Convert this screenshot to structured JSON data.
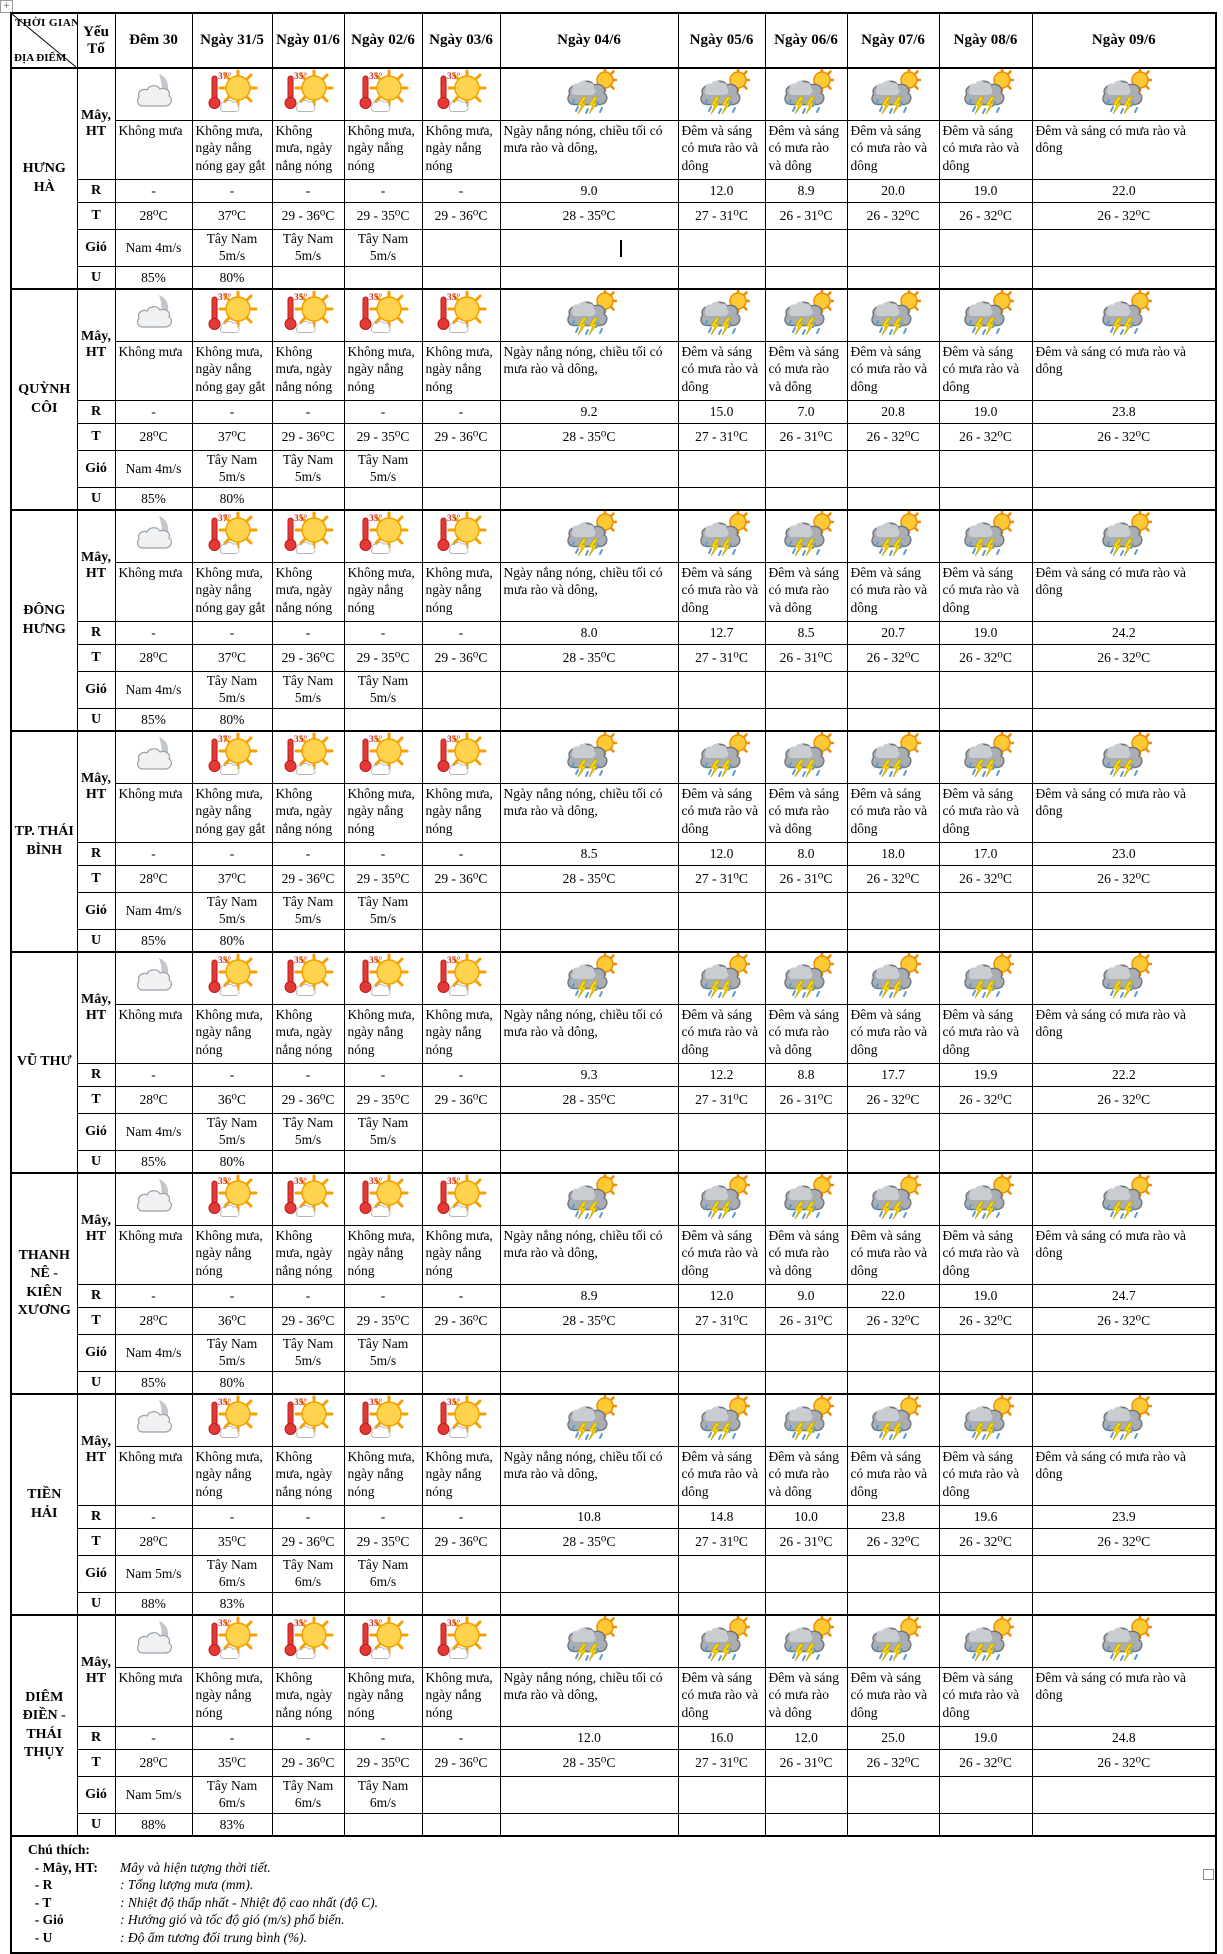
{
  "header": {
    "corner_top": "THỜI GIAN",
    "corner_bottom": "ĐỊA ĐIỂM",
    "factor_label": "Yếu Tố",
    "dates": [
      "Đêm 30",
      "Ngày 31/5",
      "Ngày 01/6",
      "Ngày 02/6",
      "Ngày 03/6",
      "Ngày 04/6",
      "Ngày 05/6",
      "Ngày 06/6",
      "Ngày 07/6",
      "Ngày 08/6",
      "Ngày 09/6"
    ]
  },
  "row_labels": {
    "cloud": "Mây, HT",
    "rain": "R",
    "temp": "T",
    "wind": "Gió",
    "humidity": "U"
  },
  "icon_badges": {
    "hot37": "37°",
    "hot35": "35°"
  },
  "cursor": {
    "location_index": 0,
    "row": "wind",
    "col_index": 5
  },
  "colors": {
    "sun": "#ffd34d",
    "ray": "#f5a000",
    "cloud_grey": "#a9aeb4",
    "lightning": "#ffdf00",
    "rain_blue": "#5b9bd5",
    "thermo_red": "#e53935"
  },
  "locations": [
    {
      "name": "HƯNG HÀ",
      "icons": [
        "night",
        "hot37",
        "hot35",
        "hot35",
        "hot35",
        "storm",
        "storm",
        "storm",
        "storm",
        "storm",
        "storm"
      ],
      "ht": [
        "Không mưa",
        "Không mưa, ngày nắng nóng gay gắt",
        "Không mưa, ngày nắng nóng",
        "Không mưa, ngày nắng nóng",
        "Không mưa, ngày nắng nóng",
        "Ngày nắng nóng, chiều tối có mưa rào và dông,",
        "Đêm và sáng có mưa rào và dông",
        "Đêm và sáng có mưa rào và dông",
        "Đêm và sáng có mưa rào và dông",
        "Đêm và sáng có mưa rào và dông",
        "Đêm và sáng có mưa rào và dông"
      ],
      "r": [
        "-",
        "-",
        "-",
        "-",
        "-",
        "9.0",
        "12.0",
        "8.9",
        "20.0",
        "19.0",
        "22.0"
      ],
      "t": [
        "28⁰C",
        "37⁰C",
        "29 - 36⁰C",
        "29 - 35⁰C",
        "29 - 36⁰C",
        "28 - 35⁰C",
        "27 - 31⁰C",
        "26 - 31⁰C",
        "26 - 32⁰C",
        "26 - 32⁰C",
        "26 - 32⁰C"
      ],
      "wind": [
        "Nam 4m/s",
        "Tây Nam 5m/s",
        "Tây Nam 5m/s",
        "Tây Nam 5m/s",
        "",
        "",
        "",
        "",
        "",
        "",
        ""
      ],
      "u": [
        "85%",
        "80%",
        "",
        "",
        "",
        "",
        "",
        "",
        "",
        "",
        ""
      ]
    },
    {
      "name": "QUỲNH CÔI",
      "icons": [
        "night",
        "hot37",
        "hot35",
        "hot35",
        "hot35",
        "storm",
        "storm",
        "storm",
        "storm",
        "storm",
        "storm"
      ],
      "ht": [
        "Không mưa",
        "Không mưa, ngày nắng nóng gay gắt",
        "Không mưa, ngày nắng nóng",
        "Không mưa, ngày nắng nóng",
        "Không mưa, ngày nắng nóng",
        "Ngày nắng nóng, chiều tối có mưa rào và dông,",
        "Đêm và sáng có mưa rào và dông",
        "Đêm và sáng có mưa rào và dông",
        "Đêm và sáng có mưa rào và dông",
        "Đêm và sáng có mưa rào và dông",
        "Đêm và sáng có mưa rào và dông"
      ],
      "r": [
        "-",
        "-",
        "-",
        "-",
        "-",
        "9.2",
        "15.0",
        "7.0",
        "20.8",
        "19.0",
        "23.8"
      ],
      "t": [
        "28⁰C",
        "37⁰C",
        "29 - 36⁰C",
        "29 - 35⁰C",
        "29 - 36⁰C",
        "28 - 35⁰C",
        "27 - 31⁰C",
        "26 - 31⁰C",
        "26 - 32⁰C",
        "26 - 32⁰C",
        "26 - 32⁰C"
      ],
      "wind": [
        "Nam 4m/s",
        "Tây Nam 5m/s",
        "Tây Nam 5m/s",
        "Tây Nam 5m/s",
        "",
        "",
        "",
        "",
        "",
        "",
        ""
      ],
      "u": [
        "85%",
        "80%",
        "",
        "",
        "",
        "",
        "",
        "",
        "",
        "",
        ""
      ]
    },
    {
      "name": "ĐÔNG HƯNG",
      "icons": [
        "night",
        "hot37",
        "hot35",
        "hot35",
        "hot35",
        "storm",
        "storm",
        "storm",
        "storm",
        "storm",
        "storm"
      ],
      "ht": [
        "Không mưa",
        "Không mưa, ngày nắng nóng gay gắt",
        "Không mưa, ngày nắng nóng",
        "Không mưa, ngày nắng nóng",
        "Không mưa, ngày nắng nóng",
        "Ngày nắng nóng, chiều tối có mưa rào và dông,",
        "Đêm và sáng có mưa rào và dông",
        "Đêm và sáng có mưa rào và dông",
        "Đêm và sáng có mưa rào và dông",
        "Đêm và sáng có mưa rào và dông",
        "Đêm và sáng có mưa rào và dông"
      ],
      "r": [
        "-",
        "-",
        "-",
        "-",
        "-",
        "8.0",
        "12.7",
        "8.5",
        "20.7",
        "19.0",
        "24.2"
      ],
      "t": [
        "28⁰C",
        "37⁰C",
        "29 - 36⁰C",
        "29 - 35⁰C",
        "29 - 36⁰C",
        "28 - 35⁰C",
        "27 - 31⁰C",
        "26 - 31⁰C",
        "26 - 32⁰C",
        "26 - 32⁰C",
        "26 - 32⁰C"
      ],
      "wind": [
        "Nam 4m/s",
        "Tây Nam 5m/s",
        "Tây Nam 5m/s",
        "Tây Nam 5m/s",
        "",
        "",
        "",
        "",
        "",
        "",
        ""
      ],
      "u": [
        "85%",
        "80%",
        "",
        "",
        "",
        "",
        "",
        "",
        "",
        "",
        ""
      ]
    },
    {
      "name": "TP. THÁI BÌNH",
      "icons": [
        "night",
        "hot37",
        "hot35",
        "hot35",
        "hot35",
        "storm",
        "storm",
        "storm",
        "storm",
        "storm",
        "storm"
      ],
      "ht": [
        "Không mưa",
        "Không mưa, ngày nắng nóng gay gắt",
        "Không mưa, ngày nắng nóng",
        "Không mưa, ngày nắng nóng",
        "Không mưa, ngày nắng nóng",
        "Ngày nắng nóng, chiều tối có mưa rào và dông,",
        "Đêm và sáng có mưa rào và dông",
        "Đêm và sáng có mưa rào và dông",
        "Đêm và sáng có mưa rào và dông",
        "Đêm và sáng có mưa rào và dông",
        "Đêm và sáng có mưa rào và dông"
      ],
      "r": [
        "-",
        "-",
        "-",
        "-",
        "-",
        "8.5",
        "12.0",
        "8.0",
        "18.0",
        "17.0",
        "23.0"
      ],
      "t": [
        "28⁰C",
        "37⁰C",
        "29 - 36⁰C",
        "29 - 35⁰C",
        "29 - 36⁰C",
        "28 - 35⁰C",
        "27 - 31⁰C",
        "26 - 31⁰C",
        "26 - 32⁰C",
        "26 - 32⁰C",
        "26 - 32⁰C"
      ],
      "wind": [
        "Nam 4m/s",
        "Tây Nam 5m/s",
        "Tây Nam 5m/s",
        "Tây Nam 5m/s",
        "",
        "",
        "",
        "",
        "",
        "",
        ""
      ],
      "u": [
        "85%",
        "80%",
        "",
        "",
        "",
        "",
        "",
        "",
        "",
        "",
        ""
      ]
    },
    {
      "name": "VŨ THƯ",
      "icons": [
        "night",
        "hot35",
        "hot35",
        "hot35",
        "hot35",
        "storm",
        "storm",
        "storm",
        "storm",
        "storm",
        "storm"
      ],
      "ht": [
        "Không mưa",
        "Không mưa, ngày nắng nóng",
        "Không mưa, ngày nắng nóng",
        "Không mưa, ngày nắng nóng",
        "Không mưa, ngày nắng nóng",
        "Ngày nắng nóng, chiều tối có mưa rào và dông,",
        "Đêm và sáng có mưa rào và dông",
        "Đêm và sáng có mưa rào và dông",
        "Đêm và sáng có mưa rào và dông",
        "Đêm và sáng có mưa rào và dông",
        "Đêm và sáng có mưa rào và dông"
      ],
      "r": [
        "-",
        "-",
        "-",
        "-",
        "-",
        "9.3",
        "12.2",
        "8.8",
        "17.7",
        "19.9",
        "22.2"
      ],
      "t": [
        "28⁰C",
        "36⁰C",
        "29 - 36⁰C",
        "29 - 35⁰C",
        "29 - 36⁰C",
        "28 - 35⁰C",
        "27 - 31⁰C",
        "26 - 31⁰C",
        "26 - 32⁰C",
        "26 - 32⁰C",
        "26 - 32⁰C"
      ],
      "wind": [
        "Nam 4m/s",
        "Tây Nam 5m/s",
        "Tây Nam 5m/s",
        "Tây Nam 5m/s",
        "",
        "",
        "",
        "",
        "",
        "",
        ""
      ],
      "u": [
        "85%",
        "80%",
        "",
        "",
        "",
        "",
        "",
        "",
        "",
        "",
        ""
      ]
    },
    {
      "name": "THANH NÊ -KIÊN XƯƠNG",
      "icons": [
        "night",
        "hot35",
        "hot35",
        "hot35",
        "hot35",
        "storm",
        "storm",
        "storm",
        "storm",
        "storm",
        "storm"
      ],
      "ht": [
        "Không mưa",
        "Không mưa, ngày nắng nóng",
        "Không mưa, ngày nắng nóng",
        "Không mưa, ngày nắng nóng",
        "Không mưa, ngày nắng nóng",
        "Ngày nắng nóng, chiều tối có mưa rào và dông,",
        "Đêm và sáng có mưa rào và dông",
        "Đêm và sáng có mưa rào và dông",
        "Đêm và sáng có mưa rào và dông",
        "Đêm và sáng có mưa rào và dông",
        "Đêm và sáng có mưa rào và dông"
      ],
      "r": [
        "-",
        "-",
        "-",
        "-",
        "-",
        "8.9",
        "12.0",
        "9.0",
        "22.0",
        "19.0",
        "24.7"
      ],
      "t": [
        "28⁰C",
        "36⁰C",
        "29 - 36⁰C",
        "29 - 35⁰C",
        "29 - 36⁰C",
        "28 - 35⁰C",
        "27 - 31⁰C",
        "26 - 31⁰C",
        "26 - 32⁰C",
        "26 - 32⁰C",
        "26 - 32⁰C"
      ],
      "wind": [
        "Nam 4m/s",
        "Tây Nam 5m/s",
        "Tây Nam 5m/s",
        "Tây Nam 5m/s",
        "",
        "",
        "",
        "",
        "",
        "",
        ""
      ],
      "u": [
        "85%",
        "80%",
        "",
        "",
        "",
        "",
        "",
        "",
        "",
        "",
        ""
      ]
    },
    {
      "name": "TIỀN HẢI",
      "icons": [
        "night",
        "hot35",
        "hot35",
        "hot35",
        "hot35",
        "storm",
        "storm",
        "storm",
        "storm",
        "storm",
        "storm"
      ],
      "ht": [
        "Không mưa",
        "Không mưa, ngày nắng nóng",
        "Không mưa, ngày nắng nóng",
        "Không mưa, ngày nắng nóng",
        "Không mưa, ngày nắng nóng",
        "Ngày nắng nóng, chiều tối có mưa rào và dông,",
        "Đêm và sáng có mưa rào và dông",
        "Đêm và sáng có mưa rào và dông",
        "Đêm và sáng có mưa rào và dông",
        "Đêm và sáng có mưa rào và dông",
        "Đêm và sáng có mưa rào và dông"
      ],
      "r": [
        "-",
        "-",
        "-",
        "-",
        "-",
        "10.8",
        "14.8",
        "10.0",
        "23.8",
        "19.6",
        "23.9"
      ],
      "t": [
        "28⁰C",
        "35⁰C",
        "29 - 36⁰C",
        "29 - 35⁰C",
        "29 - 36⁰C",
        "28 - 35⁰C",
        "27 - 31⁰C",
        "26 - 31⁰C",
        "26 - 32⁰C",
        "26 - 32⁰C",
        "26 - 32⁰C"
      ],
      "wind": [
        "Nam 5m/s",
        "Tây Nam 6m/s",
        "Tây Nam 6m/s",
        "Tây Nam 6m/s",
        "",
        "",
        "",
        "",
        "",
        "",
        ""
      ],
      "u": [
        "88%",
        "83%",
        "",
        "",
        "",
        "",
        "",
        "",
        "",
        "",
        ""
      ]
    },
    {
      "name": "DIÊM ĐIỀN - THÁI THỤY",
      "icons": [
        "night",
        "hot35",
        "hot35",
        "hot35",
        "hot35",
        "storm",
        "storm",
        "storm",
        "storm",
        "storm",
        "storm"
      ],
      "ht": [
        "Không mưa",
        "Không mưa, ngày nắng nóng",
        "Không mưa, ngày nắng nóng",
        "Không mưa, ngày nắng nóng",
        "Không mưa, ngày nắng nóng",
        "Ngày nắng nóng, chiều tối có mưa rào và dông,",
        "Đêm và sáng có mưa rào và dông",
        "Đêm và sáng có mưa rào và dông",
        "Đêm và sáng có mưa rào và dông",
        "Đêm và sáng có mưa rào và dông",
        "Đêm và sáng có mưa rào và dông"
      ],
      "r": [
        "-",
        "-",
        "-",
        "-",
        "-",
        "12.0",
        "16.0",
        "12.0",
        "25.0",
        "19.0",
        "24.8"
      ],
      "t": [
        "28⁰C",
        "35⁰C",
        "29 - 36⁰C",
        "29 - 35⁰C",
        "29 - 36⁰C",
        "28 - 35⁰C",
        "27 - 31⁰C",
        "26 - 31⁰C",
        "26 - 32⁰C",
        "26 - 32⁰C",
        "26 - 32⁰C"
      ],
      "wind": [
        "Nam 5m/s",
        "Tây Nam 6m/s",
        "Tây Nam 6m/s",
        "Tây Nam 6m/s",
        "",
        "",
        "",
        "",
        "",
        "",
        ""
      ],
      "u": [
        "88%",
        "83%",
        "",
        "",
        "",
        "",
        "",
        "",
        "",
        "",
        ""
      ]
    }
  ],
  "legend": {
    "title": "Chú thích:",
    "items": [
      {
        "term": "- Mây, HT:",
        "def": "Mây và hiện tượng thời tiết."
      },
      {
        "term": "- R",
        "def": ": Tổng lượng mưa (mm)."
      },
      {
        "term": "- T",
        "def": ": Nhiệt độ thấp nhất - Nhiệt độ cao nhất (độ C)."
      },
      {
        "term": "- Gió",
        "def": ": Hướng gió và tốc độ gió (m/s) phổ biến."
      },
      {
        "term": "- U",
        "def": ": Độ ẩm tương đối trung bình (%)."
      }
    ]
  },
  "artifacts": {
    "move_handle": "+"
  }
}
